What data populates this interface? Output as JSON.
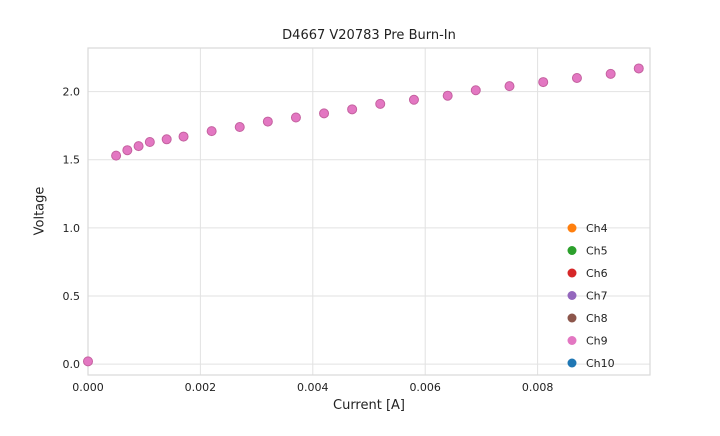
{
  "chart_data": {
    "type": "scatter",
    "title": "D4667 V20783 Pre Burn-In",
    "xlabel": "Current [A]",
    "ylabel": "Voltage",
    "xlim": [
      0,
      0.01
    ],
    "ylim": [
      -0.08,
      2.32
    ],
    "xticks": [
      0,
      0.002,
      0.004,
      0.006,
      0.008
    ],
    "xtick_labels": [
      "0.000",
      "0.002",
      "0.004",
      "0.006",
      "0.008"
    ],
    "yticks": [
      0,
      0.5,
      1.0,
      1.5,
      2.0
    ],
    "ytick_labels": [
      "0.0",
      "0.5",
      "1.0",
      "1.5",
      "2.0"
    ],
    "grid": true,
    "grid_color": "#e2e2e2",
    "spine_color": "#d9d9d9",
    "legend": {
      "position": "lower right",
      "entries": [
        {
          "label": "Ch4",
          "color": "#ff7f0e"
        },
        {
          "label": "Ch5",
          "color": "#2ca02c"
        },
        {
          "label": "Ch6",
          "color": "#d62728"
        },
        {
          "label": "Ch7",
          "color": "#9467bd"
        },
        {
          "label": "Ch8",
          "color": "#8c564b"
        },
        {
          "label": "Ch9",
          "color": "#e377c2"
        },
        {
          "label": "Ch10",
          "color": "#1f77b4"
        }
      ]
    },
    "note": "All channel series overlap; topmost visible markers are Ch9 (pink).",
    "visible_series": {
      "name": "Ch9",
      "marker_color": "#e377c2",
      "marker_edge_color": "#c4619f",
      "x": [
        0.0,
        0.0005,
        0.0007,
        0.0009,
        0.0011,
        0.0014,
        0.0017,
        0.0022,
        0.0027,
        0.0032,
        0.0037,
        0.0042,
        0.0047,
        0.0052,
        0.0058,
        0.0064,
        0.0069,
        0.0075,
        0.0081,
        0.0087,
        0.0093,
        0.0098
      ],
      "y": [
        0.02,
        1.53,
        1.57,
        1.6,
        1.63,
        1.65,
        1.67,
        1.71,
        1.74,
        1.78,
        1.81,
        1.84,
        1.87,
        1.91,
        1.94,
        1.97,
        2.01,
        2.04,
        2.07,
        2.1,
        2.13,
        2.17
      ]
    }
  }
}
